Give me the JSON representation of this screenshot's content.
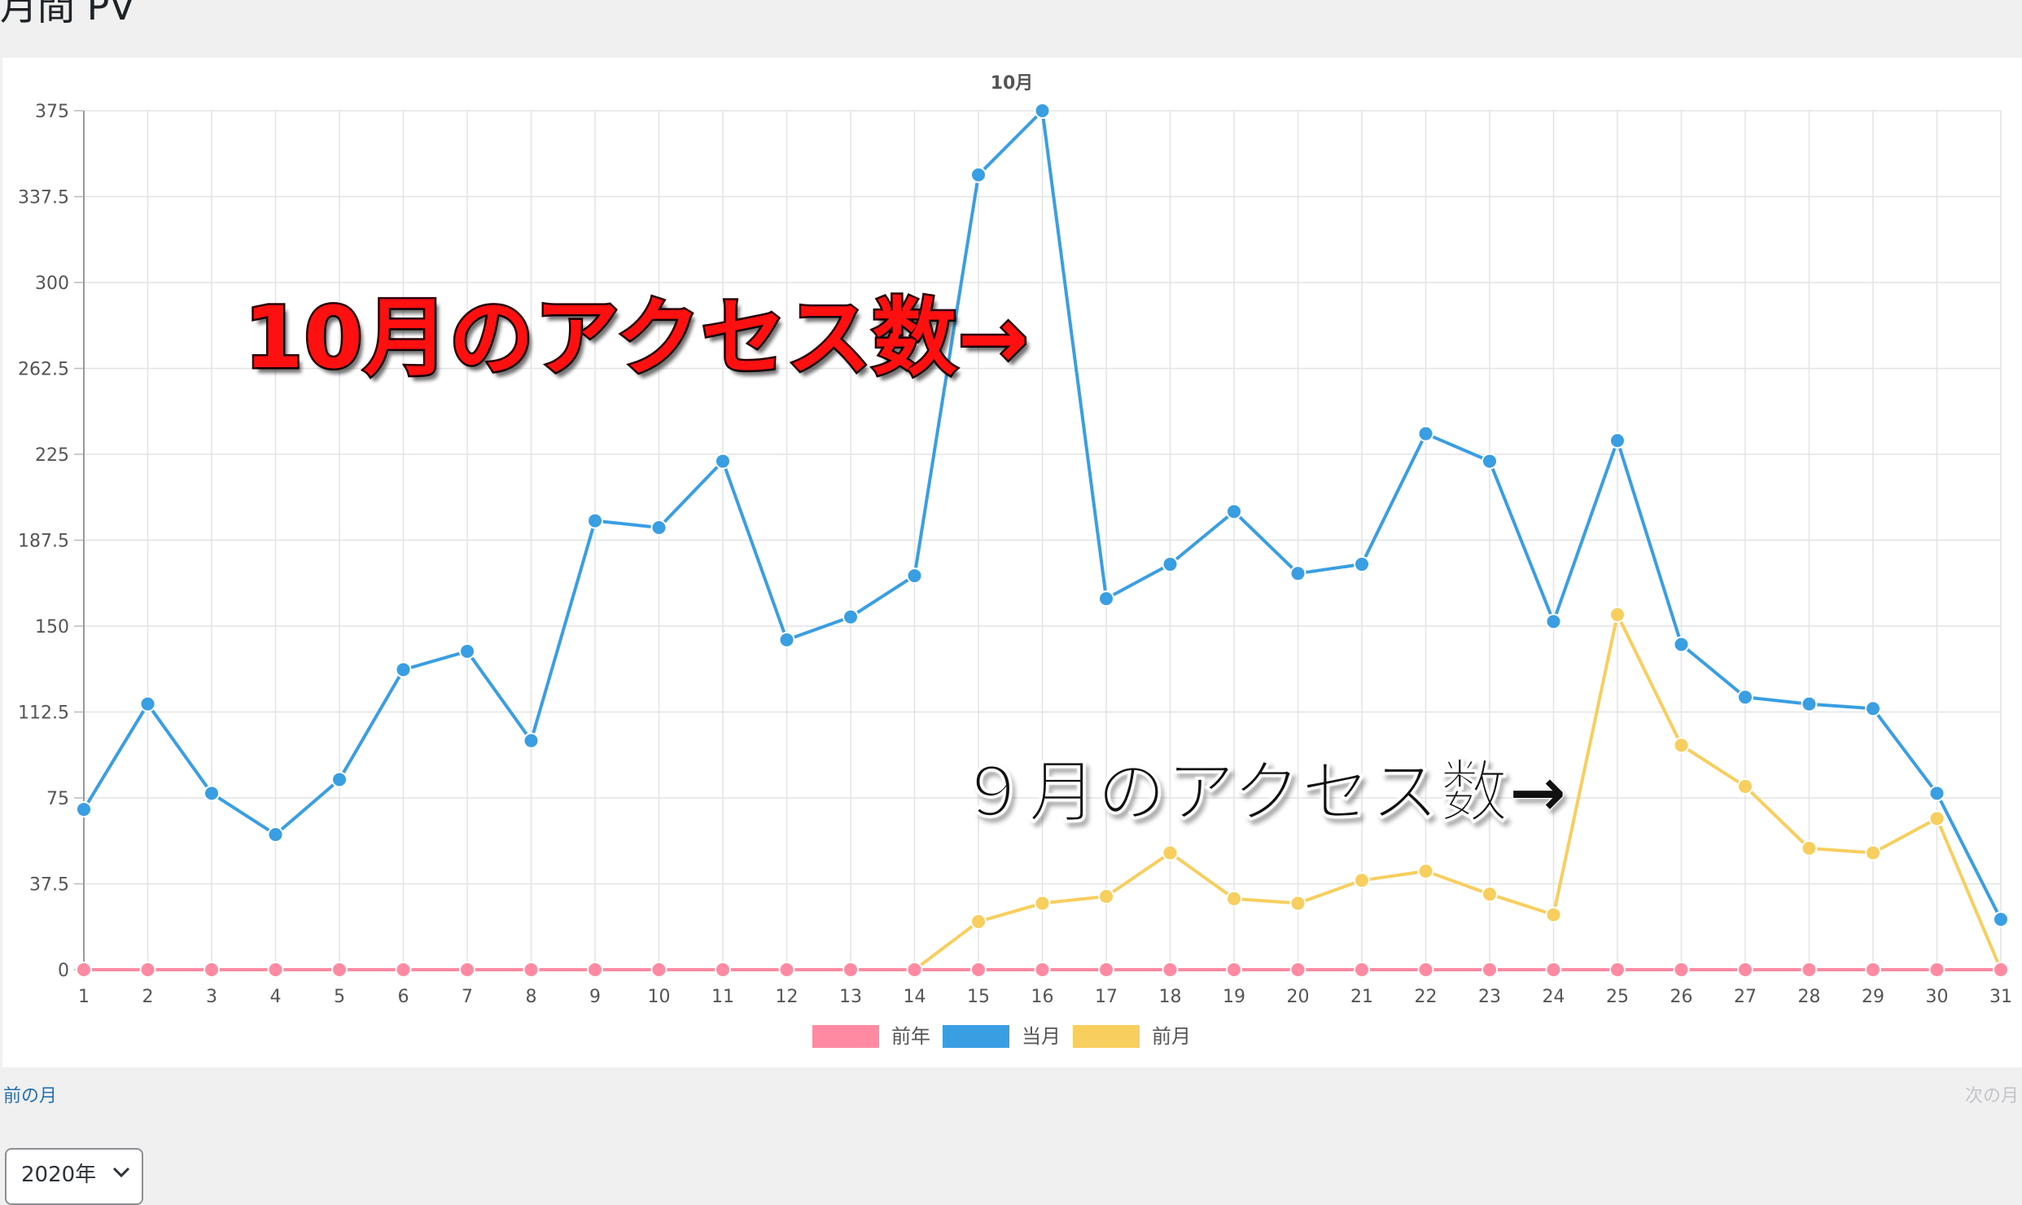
{
  "page": {
    "title": "月間 PV"
  },
  "nav": {
    "prev_label": "前の月",
    "next_label": "次の月"
  },
  "year_select": {
    "value": "2020年"
  },
  "annotations": {
    "october": "10月のアクセス数→",
    "september": "９月のアクセス数→"
  },
  "colors": {
    "prev_year": "#ff8aa2",
    "current_month": "#3a9fe2",
    "prev_month": "#f8cf5e",
    "grid": "#e3e3e3",
    "axis_text": "#555555"
  },
  "chart_data": {
    "type": "line",
    "title": "10月",
    "xlabel": "",
    "ylabel": "",
    "x": [
      1,
      2,
      3,
      4,
      5,
      6,
      7,
      8,
      9,
      10,
      11,
      12,
      13,
      14,
      15,
      16,
      17,
      18,
      19,
      20,
      21,
      22,
      23,
      24,
      25,
      26,
      27,
      28,
      29,
      30,
      31
    ],
    "ylim": [
      0,
      375
    ],
    "yticks": [
      0,
      37.5,
      75,
      112.5,
      150,
      187.5,
      225,
      262.5,
      300,
      337.5,
      375
    ],
    "grid": true,
    "legend_position": "bottom",
    "series": [
      {
        "name": "前年",
        "color": "#ff8aa2",
        "values": [
          0,
          0,
          0,
          0,
          0,
          0,
          0,
          0,
          0,
          0,
          0,
          0,
          0,
          0,
          0,
          0,
          0,
          0,
          0,
          0,
          0,
          0,
          0,
          0,
          0,
          0,
          0,
          0,
          0,
          0,
          0
        ]
      },
      {
        "name": "当月",
        "color": "#3a9fe2",
        "values": [
          70,
          116,
          77,
          59,
          83,
          131,
          139,
          100,
          196,
          193,
          222,
          144,
          154,
          172,
          347,
          375,
          162,
          177,
          200,
          173,
          177,
          234,
          222,
          152,
          231,
          142,
          119,
          116,
          114,
          77,
          22
        ]
      },
      {
        "name": "前月",
        "color": "#f8cf5e",
        "values": [
          null,
          null,
          null,
          null,
          null,
          null,
          null,
          null,
          null,
          null,
          null,
          null,
          null,
          0,
          21,
          29,
          32,
          51,
          31,
          29,
          39,
          43,
          33,
          24,
          155,
          98,
          80,
          53,
          51,
          66,
          0
        ]
      }
    ]
  }
}
